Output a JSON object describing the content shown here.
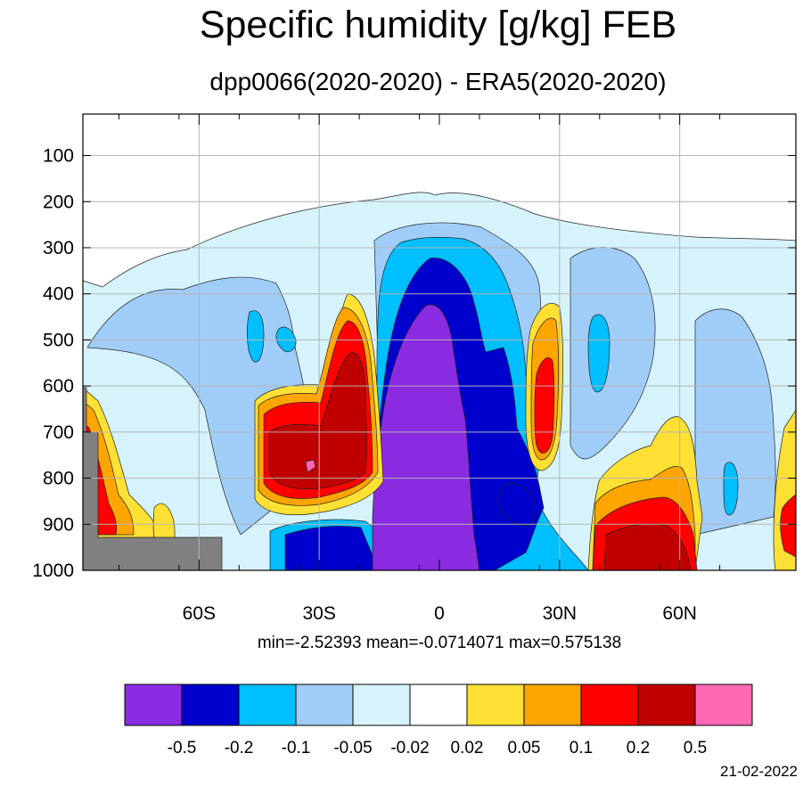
{
  "title": "Specific humidity [g/kg] FEB",
  "subtitle": "dpp0066(2020-2020) - ERA5(2020-2020)",
  "stats": "min=-2.52393   mean=-0.0714071   max=0.575138",
  "date": "21-02-2022",
  "colors": {
    "lt_-0.5": "#8a2be2",
    "-0.5_-0.2": "#0000cd",
    "-0.2_-0.1": "#00bfff",
    "-0.1_-0.05": "#a0cdf8",
    "-0.05_-0.02": "#d6f3fc",
    "-0.02_0.02": "#ffffff",
    "0.02_0.05": "#ffe034",
    "0.05_0.1": "#ffa500",
    "0.1_0.2": "#ff0000",
    "0.2_0.5": "#c00000",
    "gt_0.5": "#ff69b4",
    "missing": "#808080"
  },
  "chart_data": {
    "type": "contour",
    "title": "Specific humidity [g/kg] FEB",
    "subtitle": "dpp0066(2020-2020) - ERA5(2020-2020)",
    "x_ticks": [
      {
        "value": -60,
        "label": "60S"
      },
      {
        "value": -30,
        "label": "30S"
      },
      {
        "value": 0,
        "label": "0"
      },
      {
        "value": 30,
        "label": "30N"
      },
      {
        "value": 60,
        "label": "60N"
      }
    ],
    "y_ticks": [
      100,
      200,
      300,
      400,
      500,
      600,
      700,
      800,
      900,
      1000
    ],
    "xlim": [
      -89,
      89
    ],
    "ylim": [
      1000,
      10
    ],
    "grid": true,
    "levels": [
      -0.5,
      -0.2,
      -0.1,
      -0.05,
      -0.02,
      0.02,
      0.05,
      0.1,
      0.2,
      0.5
    ],
    "colorbar_labels": [
      "-0.5",
      "-0.2",
      "-0.1",
      "-0.05",
      "-0.02",
      "0.02",
      "0.05",
      "0.1",
      "0.2",
      "0.5"
    ],
    "min": -2.52393,
    "mean": -0.0714071,
    "max": 0.575138
  }
}
